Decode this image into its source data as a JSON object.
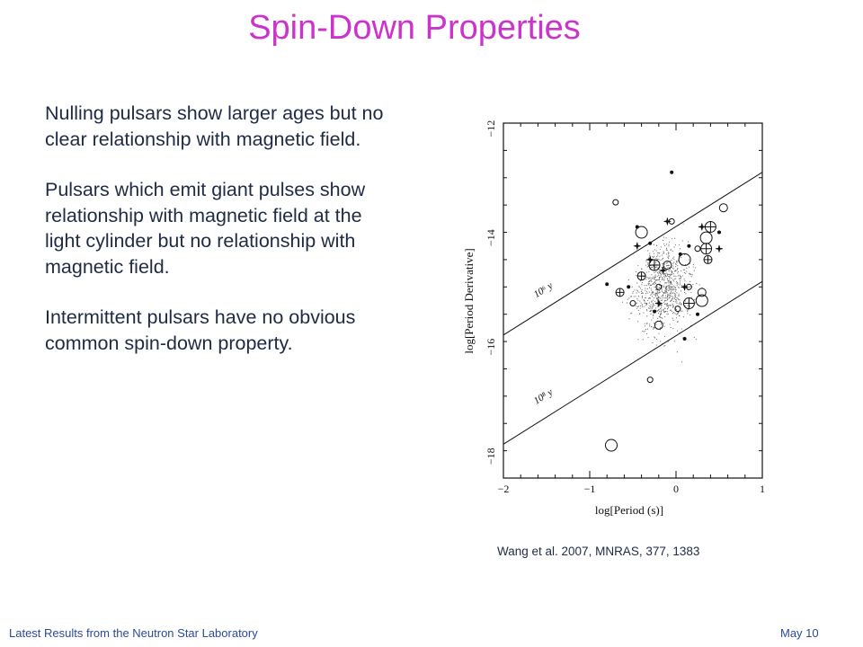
{
  "slide": {
    "title": "Spin-Down Properties",
    "bullets": [
      "Nulling pulsars show larger ages but no clear relationship with magnetic field.",
      "Pulsars which emit giant pulses show relationship with magnetic field at the light cylinder but no relationship with magnetic field.",
      "Intermittent pulsars have no obvious common spin-down property."
    ],
    "figure_credit": "Wang et al.  2007, MNRAS, 377, 1383",
    "footer_left": "Latest Results from the Neutron Star Laboratory",
    "footer_right": "May 10"
  },
  "chart_data": {
    "type": "scatter",
    "xlabel": "log[Period (s)]",
    "ylabel": "log[Period Derivative]",
    "xlim": [
      -2,
      1
    ],
    "ylim": [
      -18.4,
      -11.9
    ],
    "x_ticks": [
      "−2",
      "−1",
      "0",
      "1"
    ],
    "y_ticks": [
      "−12",
      "−14",
      "−16",
      "−18"
    ],
    "x_tick_values": [
      -2,
      -1,
      0,
      1
    ],
    "y_tick_values": [
      -12,
      -14,
      -16,
      -18
    ],
    "lines": [
      {
        "label": "10⁶ y",
        "x": [
          -2,
          1
        ],
        "y": [
          -15.78,
          -12.8
        ]
      },
      {
        "label": "10⁸ y",
        "x": [
          -2,
          1
        ],
        "y": [
          -17.78,
          -14.8
        ]
      }
    ],
    "markers": [
      {
        "type": "open-circle",
        "points": [
          [
            -0.4,
            -13.9
          ],
          [
            -0.05,
            -13.7
          ],
          [
            -0.2,
            -14.9
          ],
          [
            0.3,
            -15
          ],
          [
            0.1,
            -14.4
          ],
          [
            -0.7,
            -13.35
          ],
          [
            0.55,
            -13.45
          ],
          [
            -0.3,
            -16.6
          ],
          [
            -0.75,
            -17.8
          ],
          [
            -0.1,
            -14.5
          ],
          [
            0.25,
            -14.2
          ],
          [
            0.15,
            -14.9
          ],
          [
            0.3,
            -15.15
          ],
          [
            -0.5,
            -15.2
          ],
          [
            0.02,
            -15.3
          ],
          [
            -0.2,
            -15.6
          ],
          [
            0.35,
            -14.0
          ]
        ]
      },
      {
        "type": "filled-dot",
        "points": [
          [
            -0.05,
            -12.8
          ],
          [
            -0.3,
            -14.1
          ],
          [
            0.15,
            -14.15
          ],
          [
            -0.45,
            -13.8
          ],
          [
            -0.55,
            -14.9
          ],
          [
            -0.25,
            -15.35
          ],
          [
            0.25,
            -15.4
          ],
          [
            0.1,
            -15.85
          ],
          [
            -0.8,
            -14.85
          ],
          [
            0.05,
            -14.3
          ],
          [
            0.5,
            -13.9
          ]
        ]
      },
      {
        "type": "circle-cross",
        "points": [
          [
            -0.25,
            -14.5
          ],
          [
            -0.4,
            -14.7
          ],
          [
            0.35,
            -14.2
          ],
          [
            -0.65,
            -15
          ],
          [
            0.15,
            -15.2
          ],
          [
            0.37,
            -14.4
          ],
          [
            0.4,
            -13.8
          ]
        ]
      },
      {
        "type": "star",
        "points": [
          [
            -0.3,
            -14.4
          ],
          [
            -0.45,
            -14.15
          ],
          [
            -0.15,
            -14.6
          ],
          [
            0.1,
            -14.9
          ],
          [
            0.3,
            -13.8
          ],
          [
            -0.1,
            -13.7
          ],
          [
            0.5,
            -14.2
          ],
          [
            -0.2,
            -15.2
          ]
        ]
      }
    ]
  }
}
